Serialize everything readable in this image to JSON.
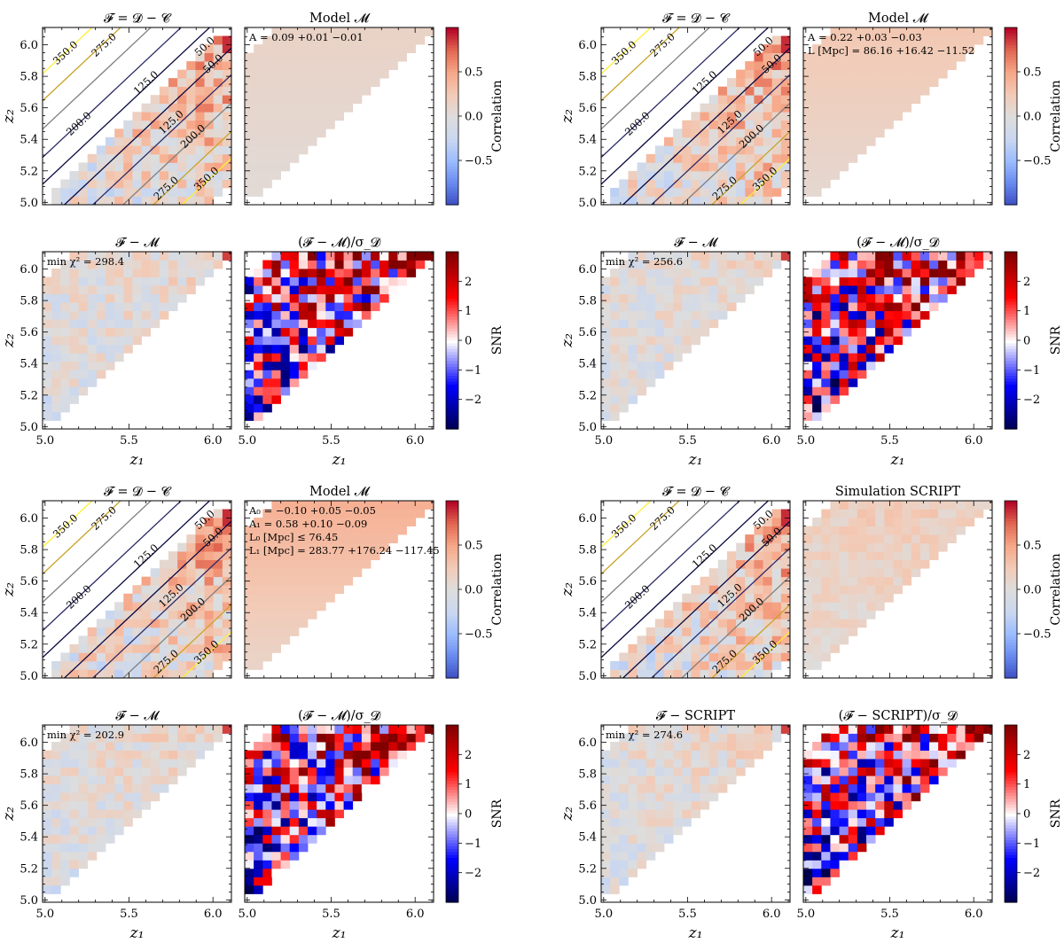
{
  "figure": {
    "xlabel": "z₁",
    "ylabel": "z₂",
    "x_ticks": [
      "5.0",
      "5.5",
      "6.0"
    ],
    "y_ticks": [
      "5.0",
      "5.2",
      "5.4",
      "5.6",
      "5.8",
      "6.0"
    ]
  },
  "colorbars": {
    "correlation": {
      "label": "Correlation",
      "ticks": [
        "0.5",
        "0.0",
        "−0.5"
      ],
      "range": [
        -1,
        1
      ]
    },
    "snr": {
      "label": "SNR",
      "ticks": [
        "2",
        "1",
        "0",
        "−1",
        "−2"
      ],
      "range": [
        -3,
        3
      ]
    }
  },
  "contour_labels": [
    "350.0",
    "275.0",
    "200.0",
    "125.0",
    "50.0",
    "50.0",
    "125.0",
    "200.0",
    "275.0",
    "350.0"
  ],
  "panels": [
    {
      "id": "g1-data",
      "title": "𝓕 = 𝓓 − 𝓒",
      "kind": "data"
    },
    {
      "id": "g1-model",
      "title": "Model 𝓜",
      "kind": "model",
      "notes": [
        "A = 0.09 +0.01 −0.01"
      ],
      "tint": 0.12
    },
    {
      "id": "g1-diff",
      "title": "𝓕 − 𝓜",
      "kind": "diff",
      "notes": [
        "min χ² = 298.4"
      ]
    },
    {
      "id": "g1-snr",
      "title": "(𝓕 − 𝓜)/σ_𝓓",
      "kind": "snr"
    },
    {
      "id": "g2-data",
      "title": "𝓕 = 𝓓 − 𝓒",
      "kind": "data"
    },
    {
      "id": "g2-model",
      "title": "Model 𝓜",
      "kind": "model",
      "notes": [
        "A = 0.22 +0.03 −0.03",
        "L [Mpc] = 86.16 +16.42 −11.52"
      ],
      "tint": 0.22
    },
    {
      "id": "g2-diff",
      "title": "𝓕 − 𝓜",
      "kind": "diff",
      "notes": [
        "min χ² = 256.6"
      ]
    },
    {
      "id": "g2-snr",
      "title": "(𝓕 − 𝓜)/σ_𝓓",
      "kind": "snr"
    },
    {
      "id": "g3-data",
      "title": "𝓕 = 𝓓 − 𝓒",
      "kind": "data"
    },
    {
      "id": "g3-model",
      "title": "Model 𝓜",
      "kind": "model",
      "notes": [
        "A₀ = −0.10 +0.05 −0.05",
        "A₁ = 0.58 +0.10 −0.09",
        "L₀ [Mpc] ≤ 76.45",
        "L₁ [Mpc] = 283.77 +176.24 −117.45"
      ],
      "tint": 0.35
    },
    {
      "id": "g3-diff",
      "title": "𝓕 − 𝓜",
      "kind": "diff",
      "notes": [
        "min χ² = 202.9"
      ]
    },
    {
      "id": "g3-snr",
      "title": "(𝓕 − 𝓜)/σ_𝓓",
      "kind": "snr"
    },
    {
      "id": "g4-data",
      "title": "𝓕 = 𝓓 − 𝓒",
      "kind": "data"
    },
    {
      "id": "g4-sim",
      "title": "Simulation SCRIPT",
      "kind": "sim"
    },
    {
      "id": "g4-diff",
      "title": "𝓕 − SCRIPT",
      "kind": "diff",
      "notes": [
        "min χ² = 274.6"
      ]
    },
    {
      "id": "g4-snr",
      "title": "(𝓕 − SCRIPT)/σ_𝓓",
      "kind": "snr"
    }
  ],
  "colors": {
    "coolwarm": [
      "#3b4cc0",
      "#6788ee",
      "#9abbff",
      "#c9d7f0",
      "#dddddd",
      "#f2cbb7",
      "#f7a889",
      "#e26952",
      "#b40426"
    ],
    "seismic": [
      "#00004c",
      "#0000ff",
      "#ffffff",
      "#ff0000",
      "#800000"
    ],
    "contour": [
      "#ffee33",
      "#c9a227",
      "#7f7f7f",
      "#2a2a66",
      "#080840"
    ]
  }
}
